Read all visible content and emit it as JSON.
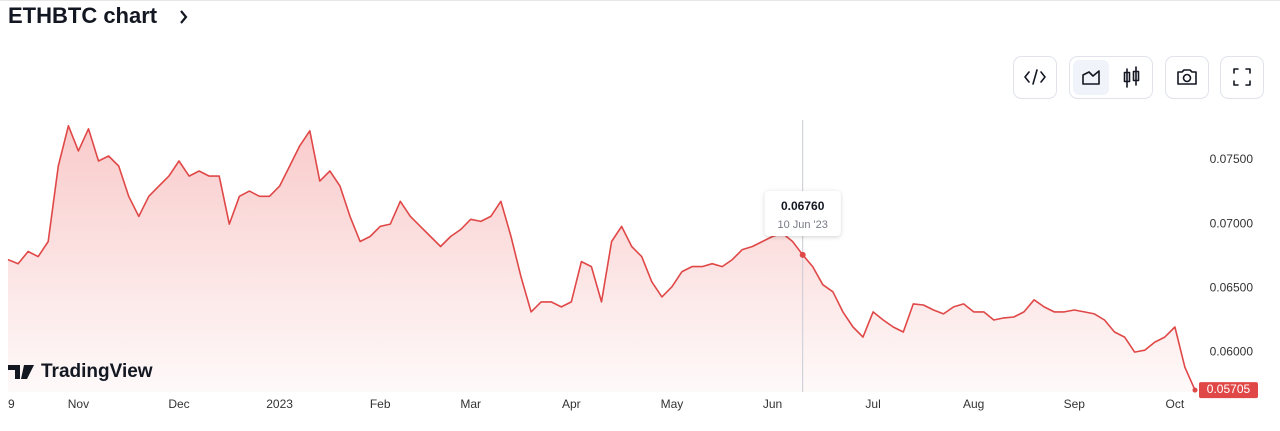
{
  "title": "ETHBTC chart",
  "watermark": "TradingView",
  "chart_data": {
    "type": "area",
    "color": "#e04848",
    "grid": false,
    "categories": [
      "9",
      null,
      null,
      null,
      null,
      null,
      null,
      "Nov",
      null,
      null,
      null,
      null,
      null,
      null,
      null,
      null,
      null,
      "Dec",
      null,
      null,
      null,
      null,
      null,
      null,
      null,
      null,
      null,
      "2023",
      null,
      null,
      null,
      null,
      null,
      null,
      null,
      null,
      null,
      "Feb",
      null,
      null,
      null,
      null,
      null,
      null,
      null,
      null,
      "Mar",
      null,
      null,
      null,
      null,
      null,
      null,
      null,
      null,
      null,
      "Apr",
      null,
      null,
      null,
      null,
      null,
      null,
      null,
      null,
      null,
      "May",
      null,
      null,
      null,
      null,
      null,
      null,
      null,
      null,
      null,
      "Jun",
      null,
      null,
      null,
      null,
      null,
      null,
      null,
      null,
      null,
      "Jul",
      null,
      null,
      null,
      null,
      null,
      null,
      null,
      null,
      null,
      "Aug",
      null,
      null,
      null,
      null,
      null,
      null,
      null,
      null,
      null,
      "Sep",
      null,
      null,
      null,
      null,
      null,
      null,
      null,
      null,
      null,
      "Oct",
      null,
      null
    ],
    "values": [
      0.06723,
      0.06691,
      0.06786,
      0.06746,
      0.06864,
      0.07453,
      0.07767,
      0.07571,
      0.07743,
      0.07492,
      0.07531,
      0.07453,
      0.07217,
      0.0706,
      0.07217,
      0.07296,
      0.07374,
      0.07492,
      0.07374,
      0.07414,
      0.07374,
      0.07374,
      0.07,
      0.07217,
      0.07257,
      0.07217,
      0.07217,
      0.07296,
      0.07453,
      0.0761,
      0.07728,
      0.07335,
      0.07414,
      0.07296,
      0.0706,
      0.06864,
      0.06903,
      0.06982,
      0.07,
      0.07178,
      0.0706,
      0.06982,
      0.06903,
      0.06825,
      0.06903,
      0.06958,
      0.07037,
      0.07021,
      0.0706,
      0.07178,
      0.06903,
      0.06589,
      0.06315,
      0.06393,
      0.06393,
      0.06354,
      0.06393,
      0.06707,
      0.06668,
      0.06393,
      0.06864,
      0.06982,
      0.06825,
      0.06746,
      0.0655,
      0.06432,
      0.06511,
      0.06629,
      0.06668,
      0.06668,
      0.06691,
      0.06668,
      0.06723,
      0.06801,
      0.06825,
      0.06864,
      0.06903,
      0.06927,
      0.06864,
      0.0676,
      0.06668,
      0.06527,
      0.06472,
      0.06315,
      0.06197,
      0.06118,
      0.06315,
      0.06252,
      0.06197,
      0.06158,
      0.06377,
      0.06369,
      0.0633,
      0.06299,
      0.06354,
      0.06377,
      0.06315,
      0.06315,
      0.06252,
      0.06268,
      0.06275,
      0.06315,
      0.06409,
      0.06354,
      0.06315,
      0.06315,
      0.0633,
      0.06315,
      0.06299,
      0.06252,
      0.06158,
      0.06118,
      0.06001,
      0.06016,
      0.06079,
      0.06118,
      0.06197,
      0.05883,
      0.05705
    ],
    "ylim": [
      0.0569,
      0.0789
    ],
    "yticks": [
      {
        "value": 0.06,
        "label": "0.06000"
      },
      {
        "value": 0.065,
        "label": "0.06500"
      },
      {
        "value": 0.07,
        "label": "0.07000"
      },
      {
        "value": 0.075,
        "label": "0.07500"
      }
    ],
    "tooltip": {
      "index": 79,
      "label": "0.06760",
      "date": "10 Jun '23"
    },
    "last_label": "0.05705"
  }
}
